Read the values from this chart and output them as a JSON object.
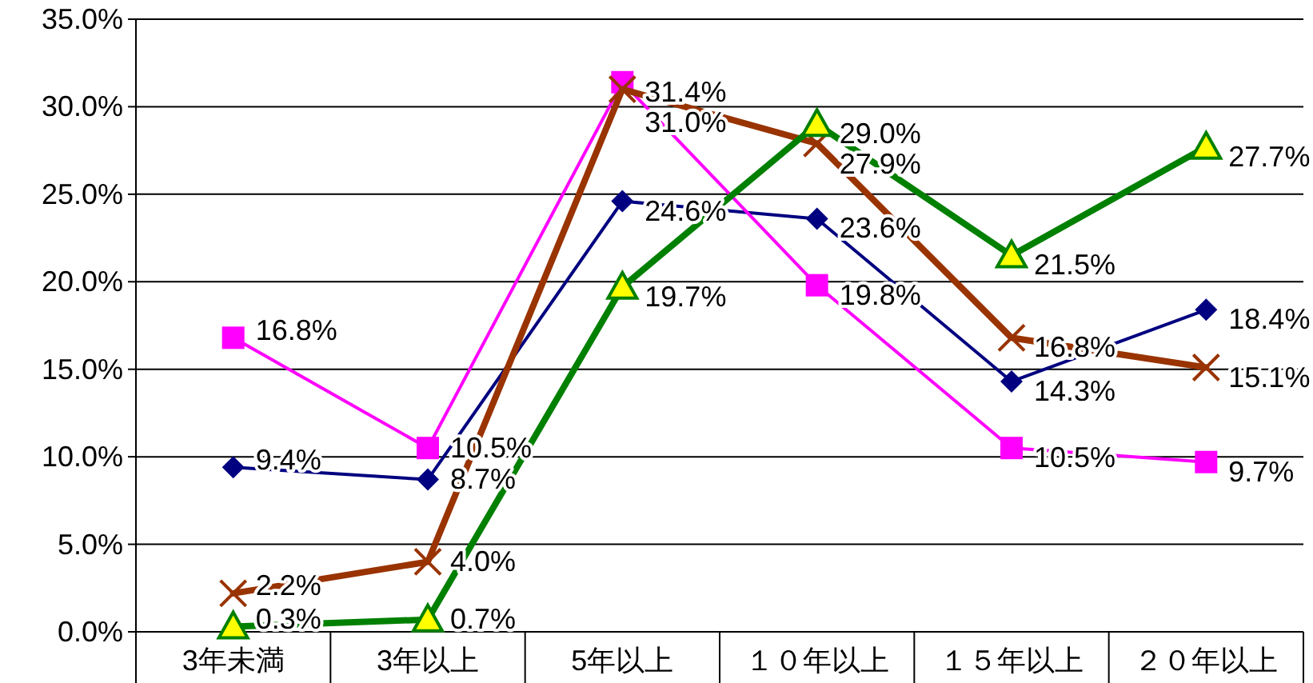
{
  "chart_data": {
    "type": "line",
    "categories": [
      "3年未満",
      "3年以上",
      "5年以上",
      "１０年以上",
      "１５年以上",
      "２０年以上"
    ],
    "series": [
      {
        "color": "#000080",
        "marker": "diamond",
        "values": [
          9.4,
          8.7,
          24.6,
          23.6,
          14.3,
          18.4
        ],
        "value_labels": [
          "9.4%",
          "8.7%",
          "24.6%",
          "23.6%",
          "14.3%",
          "18.4%"
        ]
      },
      {
        "color": "#ff00ff",
        "marker": "square",
        "values": [
          16.8,
          10.5,
          31.4,
          19.8,
          10.5,
          9.7
        ],
        "value_labels": [
          "16.8%",
          "10.5%",
          "31.4%",
          "19.8%",
          "10.5%",
          "9.7%"
        ]
      },
      {
        "color": "#993300",
        "marker": "cross",
        "values": [
          2.2,
          4.0,
          31.0,
          27.9,
          16.8,
          15.1
        ],
        "value_labels": [
          "2.2%",
          "4.0%",
          "31.0%",
          "27.9%",
          "16.8%",
          "15.1%"
        ]
      },
      {
        "color": "#008000",
        "marker": "triangle",
        "values": [
          0.3,
          0.7,
          19.7,
          29.0,
          21.5,
          27.7
        ],
        "value_labels": [
          "0.3%",
          "0.7%",
          "19.7%",
          "29.0%",
          "21.5%",
          "27.7%"
        ]
      }
    ],
    "ylim": [
      0,
      35
    ],
    "yticks": [
      {
        "value": 0,
        "label": "0.0%"
      },
      {
        "value": 5,
        "label": "5.0%"
      },
      {
        "value": 10,
        "label": "10.0%"
      },
      {
        "value": 15,
        "label": "15.0%"
      },
      {
        "value": 20,
        "label": "20.0%"
      },
      {
        "value": 25,
        "label": "25.0%"
      },
      {
        "value": 30,
        "label": "30.0%"
      },
      {
        "value": 35,
        "label": "35.0%"
      }
    ],
    "grid": "y",
    "line_style": "solid"
  }
}
